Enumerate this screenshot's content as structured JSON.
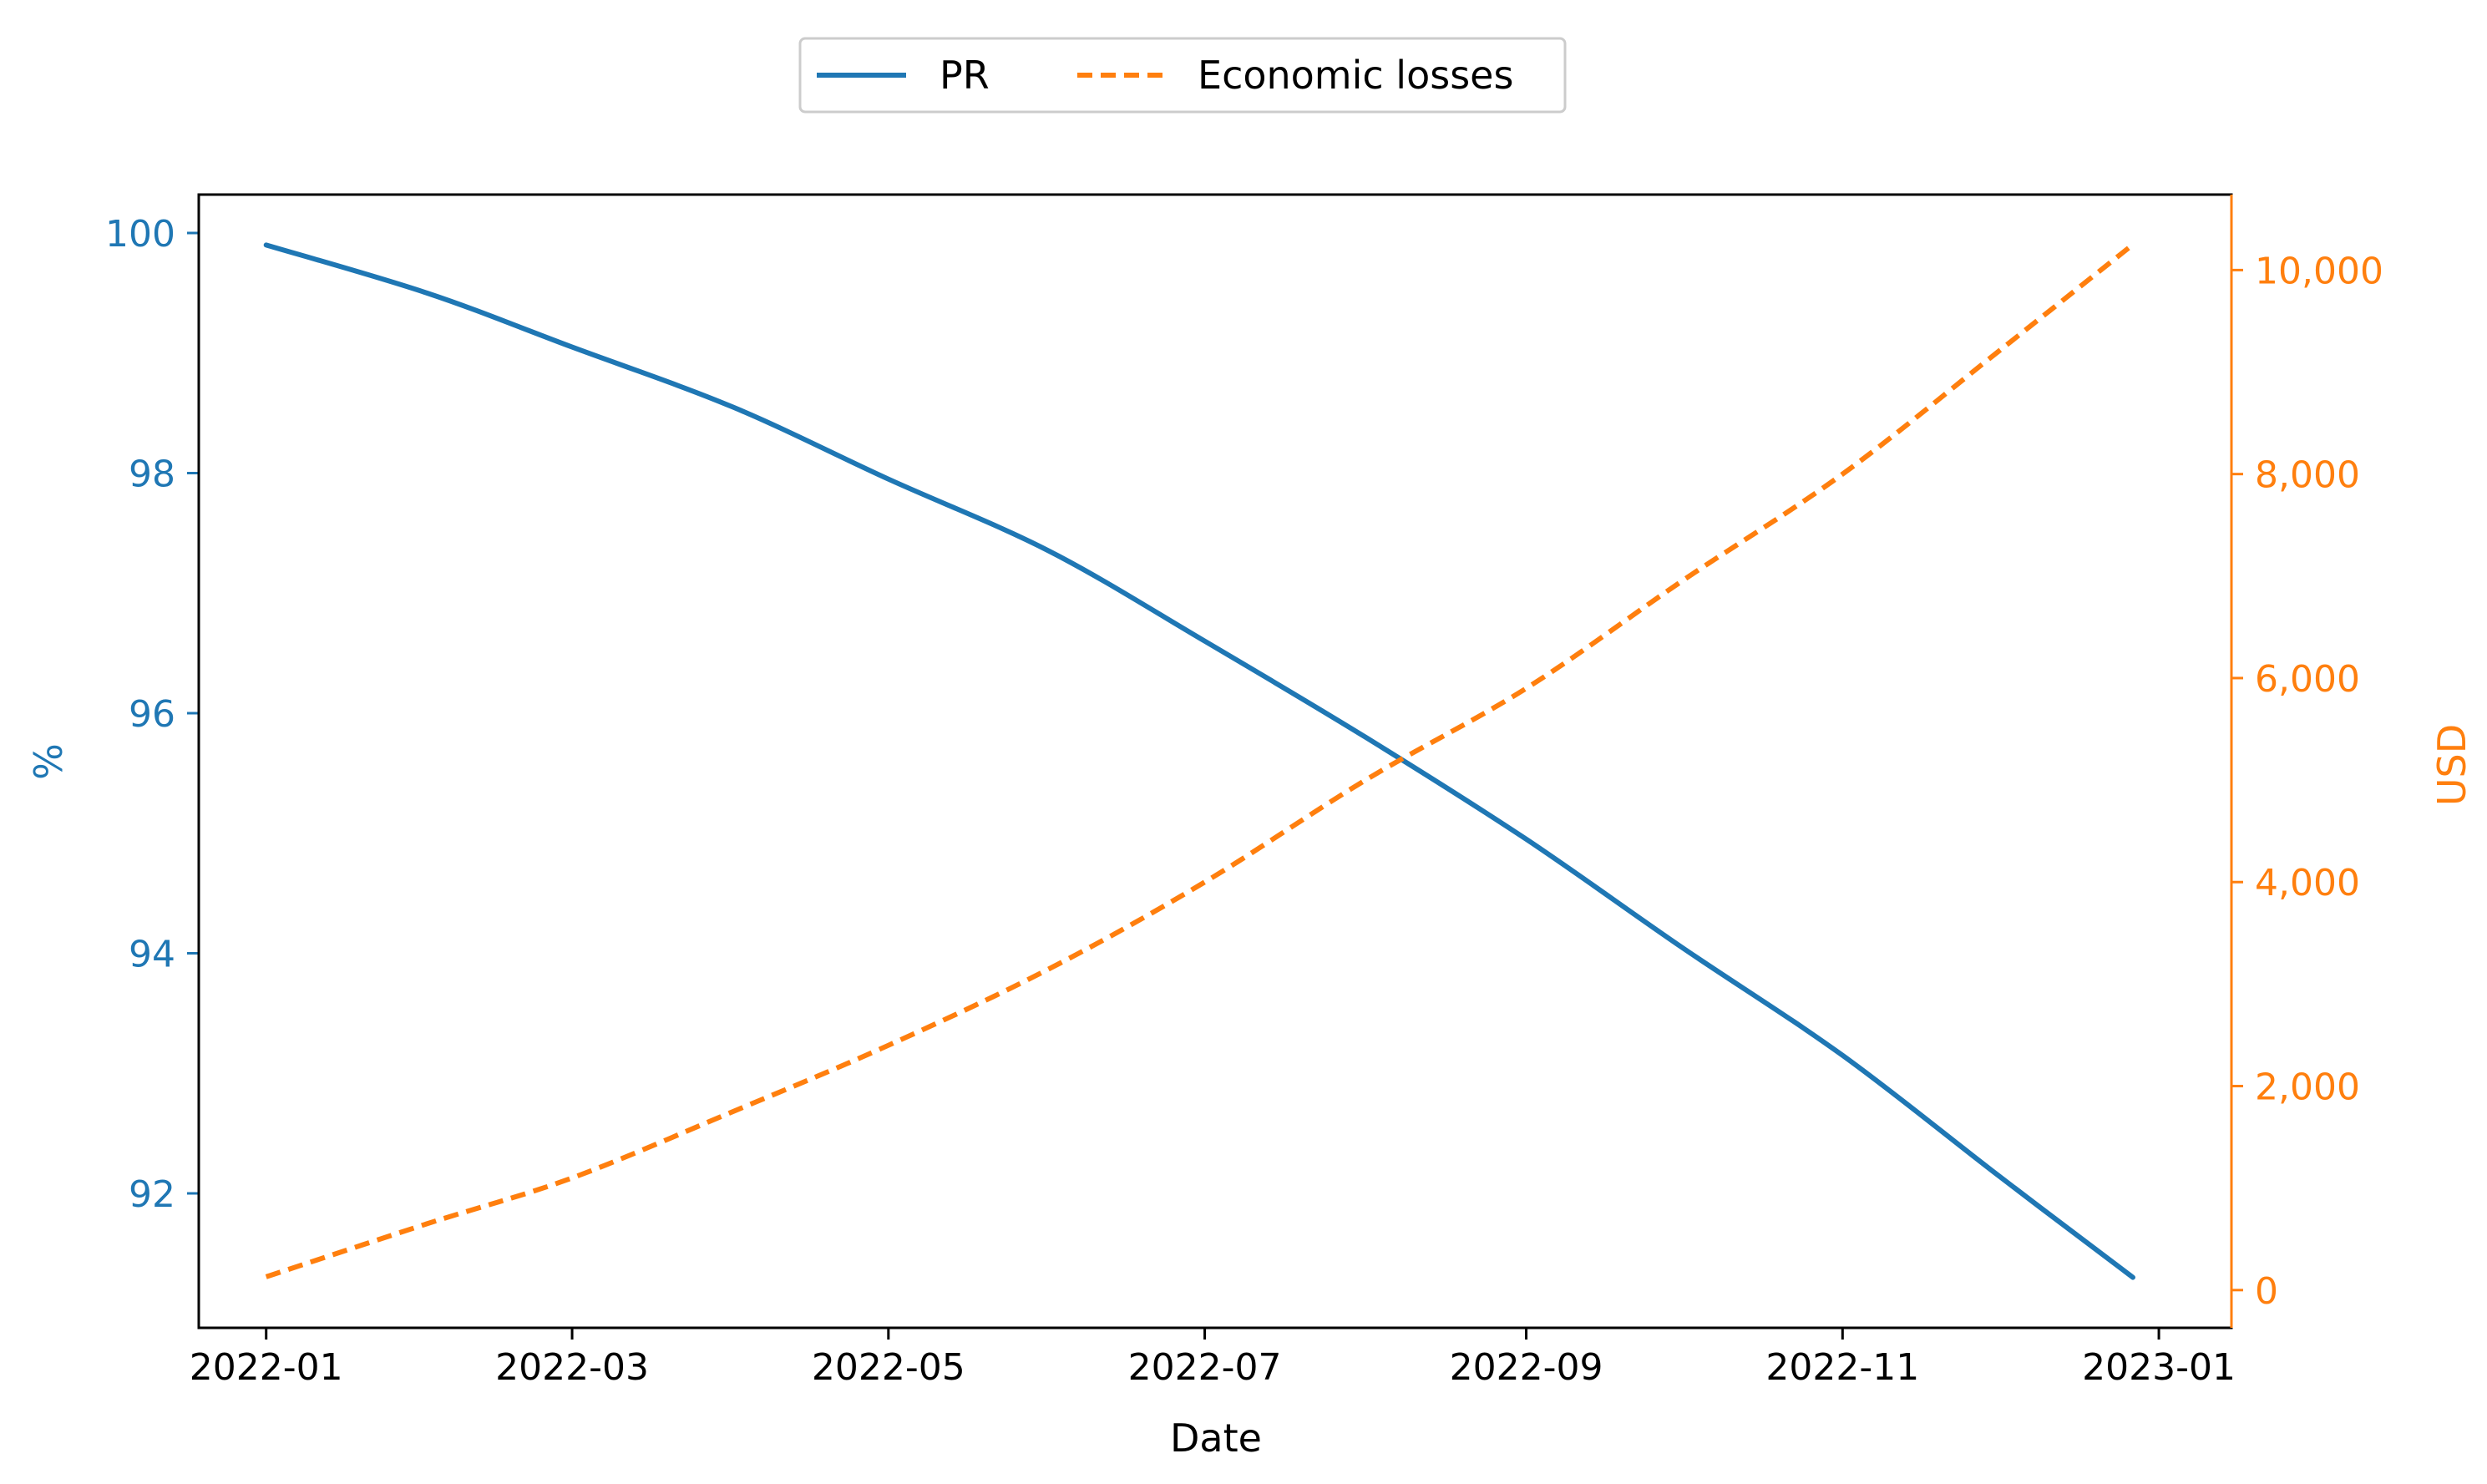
{
  "chart_data": {
    "type": "line",
    "xlabel": "Date",
    "x_ticks": [
      "2022-01",
      "2022-03",
      "2022-05",
      "2022-07",
      "2022-09",
      "2022-11",
      "2023-01"
    ],
    "xlim": [
      "2021-12-19",
      "2023-01-15"
    ],
    "y_left": {
      "label": "%",
      "color": "#1f77b4",
      "ticks": [
        "92",
        "94",
        "96",
        "98",
        "100"
      ],
      "ylim": [
        90.88,
        100.32
      ]
    },
    "y_right": {
      "label": "USD",
      "color": "#ff7f0e",
      "ticks": [
        "0",
        "2,000",
        "4,000",
        "6,000",
        "8,000",
        "10,000"
      ],
      "ylim": [
        -370,
        10740
      ]
    },
    "legend": {
      "position": "upper-center, above plot",
      "columns": 2
    },
    "series": [
      {
        "name": "PR",
        "axis": "left",
        "style": "solid",
        "color": "#1f77b4",
        "x": [
          "2022-01-01",
          "2022-02-01",
          "2022-03-01",
          "2022-04-01",
          "2022-05-01",
          "2022-06-01",
          "2022-07-01",
          "2022-08-01",
          "2022-09-01",
          "2022-10-01",
          "2022-11-01",
          "2022-12-01",
          "2022-12-27"
        ],
        "values": [
          99.9,
          99.5,
          99.05,
          98.55,
          97.95,
          97.35,
          96.6,
          95.8,
          94.95,
          94.05,
          93.15,
          92.15,
          91.3
        ]
      },
      {
        "name": "Economic losses",
        "axis": "right",
        "style": "dashed",
        "color": "#ff7f0e",
        "x": [
          "2022-01-01",
          "2022-02-01",
          "2022-03-01",
          "2022-04-01",
          "2022-05-01",
          "2022-06-01",
          "2022-07-01",
          "2022-08-01",
          "2022-09-01",
          "2022-10-01",
          "2022-11-01",
          "2022-12-01",
          "2022-12-27"
        ],
        "values": [
          130,
          650,
          1100,
          1750,
          2400,
          3150,
          4000,
          5000,
          5900,
          6950,
          8000,
          9200,
          10250
        ]
      }
    ]
  }
}
